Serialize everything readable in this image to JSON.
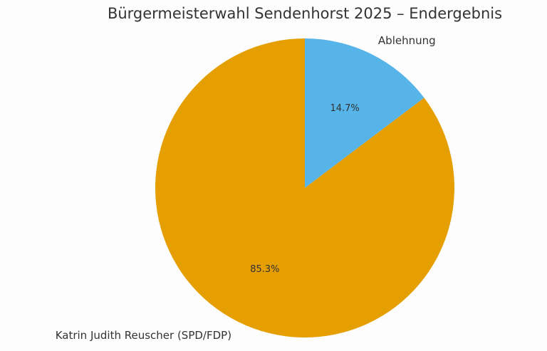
{
  "chart_data": {
    "type": "pie",
    "title": "Bürgermeisterwahl Sendenhorst 2025 – Endergebnis",
    "start": "top",
    "direction": "clockwise",
    "slices": [
      {
        "label": "Ablehnung",
        "value": 14.7,
        "pct_label": "14.7%",
        "color": "#56B4E9"
      },
      {
        "label": "Katrin Judith Reuscher (SPD/FDP)",
        "value": 85.3,
        "pct_label": "85.3%",
        "color": "#E69F00"
      }
    ]
  }
}
